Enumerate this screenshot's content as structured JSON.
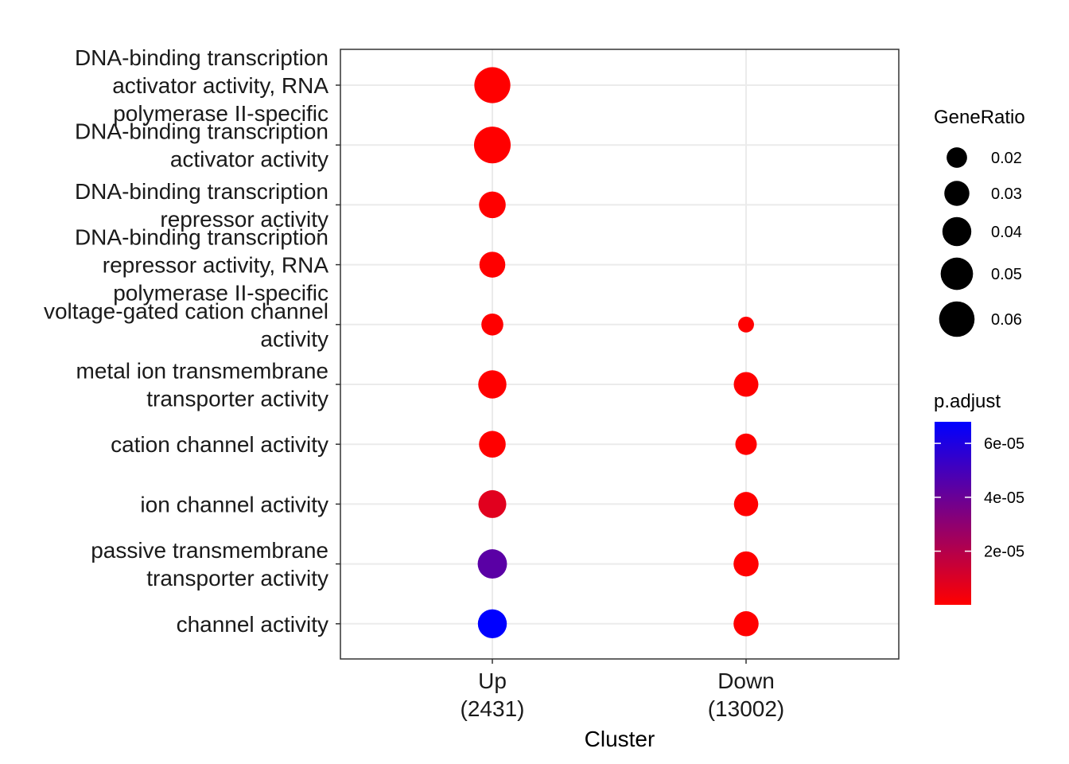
{
  "chart_data": {
    "type": "scatter",
    "xlabel": "Cluster",
    "x_categories": [
      {
        "name": "Up",
        "count": "(2431)"
      },
      {
        "name": "Down",
        "count": "(13002)"
      }
    ],
    "y_categories": [
      {
        "key": "dna_act_rna",
        "lines": [
          "DNA-binding transcription",
          "activator activity, RNA",
          "polymerase II-specific"
        ]
      },
      {
        "key": "dna_act",
        "lines": [
          "DNA-binding transcription",
          "activator activity"
        ]
      },
      {
        "key": "dna_rep",
        "lines": [
          "DNA-binding transcription",
          "repressor activity"
        ]
      },
      {
        "key": "dna_rep_rna",
        "lines": [
          "DNA-binding transcription",
          "repressor activity, RNA",
          "polymerase II-specific"
        ]
      },
      {
        "key": "vgcc",
        "lines": [
          "voltage-gated cation channel",
          "activity"
        ]
      },
      {
        "key": "metal",
        "lines": [
          "metal ion transmembrane",
          "transporter activity"
        ]
      },
      {
        "key": "cation",
        "lines": [
          "cation channel activity"
        ]
      },
      {
        "key": "ion",
        "lines": [
          "ion channel activity"
        ]
      },
      {
        "key": "passive",
        "lines": [
          "passive transmembrane",
          "transporter activity"
        ]
      },
      {
        "key": "channel",
        "lines": [
          "channel activity"
        ]
      }
    ],
    "points": [
      {
        "cluster": "Up",
        "term": "dna_act_rna",
        "gene_ratio": 0.062,
        "p_adjust": 1e-07
      },
      {
        "cluster": "Up",
        "term": "dna_act",
        "gene_ratio": 0.064,
        "p_adjust": 1e-07
      },
      {
        "cluster": "Up",
        "term": "dna_rep",
        "gene_ratio": 0.034,
        "p_adjust": 1e-07
      },
      {
        "cluster": "Up",
        "term": "dna_rep_rna",
        "gene_ratio": 0.032,
        "p_adjust": 1e-07
      },
      {
        "cluster": "Up",
        "term": "vgcc",
        "gene_ratio": 0.023,
        "p_adjust": 1e-07
      },
      {
        "cluster": "Up",
        "term": "metal",
        "gene_ratio": 0.038,
        "p_adjust": 1e-07
      },
      {
        "cluster": "Up",
        "term": "cation",
        "gene_ratio": 0.034,
        "p_adjust": 1e-07
      },
      {
        "cluster": "Up",
        "term": "ion",
        "gene_ratio": 0.037,
        "p_adjust": 8e-06
      },
      {
        "cluster": "Up",
        "term": "passive",
        "gene_ratio": 0.041,
        "p_adjust": 4.4e-05
      },
      {
        "cluster": "Up",
        "term": "channel",
        "gene_ratio": 0.04,
        "p_adjust": 6.8e-05
      },
      {
        "cluster": "Down",
        "term": "vgcc",
        "gene_ratio": 0.012,
        "p_adjust": 1e-07
      },
      {
        "cluster": "Down",
        "term": "metal",
        "gene_ratio": 0.029,
        "p_adjust": 1e-07
      },
      {
        "cluster": "Down",
        "term": "cation",
        "gene_ratio": 0.022,
        "p_adjust": 1e-07
      },
      {
        "cluster": "Down",
        "term": "ion",
        "gene_ratio": 0.028,
        "p_adjust": 1e-07
      },
      {
        "cluster": "Down",
        "term": "passive",
        "gene_ratio": 0.03,
        "p_adjust": 1e-07
      },
      {
        "cluster": "Down",
        "term": "channel",
        "gene_ratio": 0.03,
        "p_adjust": 1e-07
      }
    ],
    "size_legend": {
      "title": "GeneRatio",
      "values": [
        0.02,
        0.03,
        0.04,
        0.05,
        0.06
      ],
      "labels": [
        "0.02",
        "0.03",
        "0.04",
        "0.05",
        "0.06"
      ]
    },
    "color_legend": {
      "title": "p.adjust",
      "range": [
        1e-07,
        6.8e-05
      ],
      "breaks": [
        2e-05,
        4e-05,
        6e-05
      ],
      "labels": [
        "2e-05",
        "4e-05",
        "6e-05"
      ],
      "low_color": "#ff0000",
      "high_color": "#0000ff"
    },
    "grid": true,
    "legend_position": "right"
  }
}
